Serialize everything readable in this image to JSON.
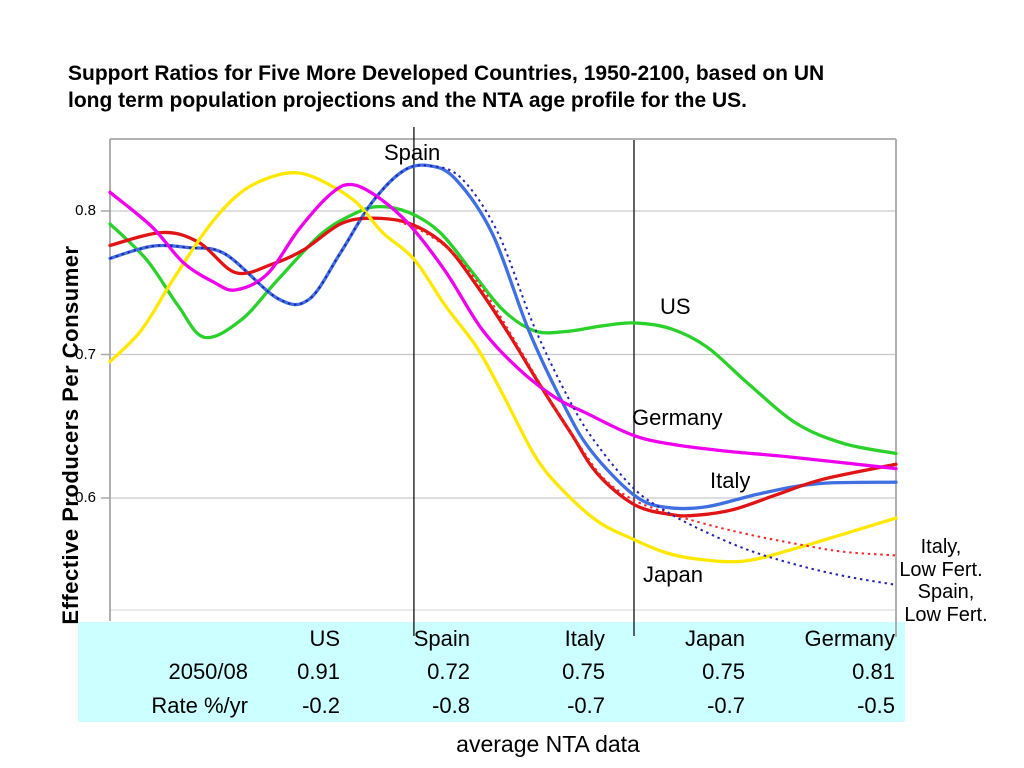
{
  "title": {
    "line1": "Support Ratios for Five More Developed Countries, 1950-2100, based on UN",
    "line2": "long term population projections and the NTA age profile for the US."
  },
  "y_axis": {
    "label": "Effective Producers Per Consumer",
    "ticks": [
      "0.8",
      "0.7",
      "0.6"
    ]
  },
  "annotations": {
    "spain": "Spain",
    "us": "US",
    "germany": "Germany",
    "italy": "Italy",
    "japan": "Japan",
    "italy_low_fert_line1": "Italy,",
    "italy_low_fert_line2": "Low Fert.",
    "spain_low_fert_line1": "Spain,",
    "spain_low_fert_line2": "Low Fert."
  },
  "table": {
    "background": "#ccffff",
    "headers": [
      "",
      "US",
      "Spain",
      "Italy",
      "Japan",
      "Germany"
    ],
    "rows": [
      [
        "2050/08",
        "0.91",
        "0.72",
        "0.75",
        "0.75",
        "0.81"
      ],
      [
        "Rate %/yr",
        "-0.2",
        "-0.8",
        "-0.7",
        "-0.7",
        "-0.5"
      ]
    ]
  },
  "caption": "average NTA data",
  "chart_data": {
    "type": "line",
    "title": "Support Ratios for Five More Developed Countries, 1950-2100, based on UN long term population projections and the NTA age profile for the US.",
    "xlabel": "",
    "ylabel": "Effective Producers Per Consumer",
    "x_range": [
      1950,
      2100
    ],
    "ylim": [
      0.52,
      0.85
    ],
    "yticks": [
      0.8,
      0.7,
      0.6
    ],
    "grid": "horizontal",
    "legend_position": "inline-labels",
    "reference_years": [
      2008,
      2050
    ],
    "colors": {
      "grid": "#c9c9c9",
      "frame": "#a8a8a8",
      "frame_bottom": "#dedede",
      "reference_line": "#111111"
    },
    "series": [
      {
        "name": "US",
        "color": "#2bd12b",
        "style": "solid",
        "points": [
          [
            1950,
            0.791
          ],
          [
            1957,
            0.766
          ],
          [
            1963,
            0.734
          ],
          [
            1968,
            0.712
          ],
          [
            1975,
            0.724
          ],
          [
            1982,
            0.752
          ],
          [
            1990,
            0.783
          ],
          [
            1996,
            0.797
          ],
          [
            2001,
            0.803
          ],
          [
            2007,
            0.799
          ],
          [
            2013,
            0.785
          ],
          [
            2019,
            0.758
          ],
          [
            2025,
            0.731
          ],
          [
            2031,
            0.7165
          ],
          [
            2037,
            0.716
          ],
          [
            2044,
            0.72
          ],
          [
            2050,
            0.722
          ],
          [
            2057,
            0.718
          ],
          [
            2064,
            0.705
          ],
          [
            2072,
            0.679
          ],
          [
            2081,
            0.652
          ],
          [
            2090,
            0.638
          ],
          [
            2100,
            0.631
          ]
        ]
      },
      {
        "name": "Spain",
        "color": "#3f6fe0",
        "style": "solid",
        "points": [
          [
            1950,
            0.767
          ],
          [
            1958,
            0.7755
          ],
          [
            1965,
            0.7745
          ],
          [
            1972,
            0.77
          ],
          [
            1982,
            0.739
          ],
          [
            1988,
            0.7385
          ],
          [
            1994,
            0.771
          ],
          [
            2000,
            0.806
          ],
          [
            2006,
            0.828
          ],
          [
            2011,
            0.8315
          ],
          [
            2016,
            0.822
          ],
          [
            2023,
            0.784
          ],
          [
            2030,
            0.716
          ],
          [
            2037,
            0.662
          ],
          [
            2042,
            0.632
          ],
          [
            2050,
            0.602
          ],
          [
            2056,
            0.5935
          ],
          [
            2064,
            0.594
          ],
          [
            2074,
            0.603
          ],
          [
            2085,
            0.61
          ],
          [
            2100,
            0.611
          ]
        ]
      },
      {
        "name": "Italy",
        "color": "#e01414",
        "style": "solid",
        "points": [
          [
            1950,
            0.776
          ],
          [
            1960,
            0.785
          ],
          [
            1967,
            0.778
          ],
          [
            1974,
            0.757
          ],
          [
            1981,
            0.763
          ],
          [
            1987,
            0.773
          ],
          [
            1994,
            0.791
          ],
          [
            2000,
            0.795
          ],
          [
            2007,
            0.7915
          ],
          [
            2014,
            0.776
          ],
          [
            2020,
            0.748
          ],
          [
            2026,
            0.715
          ],
          [
            2032,
            0.679
          ],
          [
            2038,
            0.645
          ],
          [
            2043,
            0.617
          ],
          [
            2050,
            0.5955
          ],
          [
            2057,
            0.5885
          ],
          [
            2062,
            0.588
          ],
          [
            2069,
            0.592
          ],
          [
            2077,
            0.602
          ],
          [
            2086,
            0.613
          ],
          [
            2100,
            0.6235
          ]
        ]
      },
      {
        "name": "Japan",
        "color": "#ffe800",
        "style": "solid",
        "points": [
          [
            1950,
            0.695
          ],
          [
            1956,
            0.717
          ],
          [
            1962,
            0.752
          ],
          [
            1969,
            0.79
          ],
          [
            1975,
            0.813
          ],
          [
            1981,
            0.824
          ],
          [
            1986,
            0.8265
          ],
          [
            1991,
            0.82
          ],
          [
            1997,
            0.806
          ],
          [
            2002,
            0.785
          ],
          [
            2008,
            0.7665
          ],
          [
            2014,
            0.734
          ],
          [
            2020,
            0.705
          ],
          [
            2025,
            0.672
          ],
          [
            2031,
            0.63
          ],
          [
            2036,
            0.607
          ],
          [
            2043,
            0.584
          ],
          [
            2050,
            0.571
          ],
          [
            2056,
            0.562
          ],
          [
            2062,
            0.5575
          ],
          [
            2071,
            0.556
          ],
          [
            2081,
            0.565
          ],
          [
            2091,
            0.576
          ],
          [
            2100,
            0.586
          ]
        ]
      },
      {
        "name": "Germany",
        "color": "#ee00ee",
        "style": "solid",
        "points": [
          [
            1950,
            0.813
          ],
          [
            1958,
            0.789
          ],
          [
            1964,
            0.764
          ],
          [
            1970,
            0.75
          ],
          [
            1974,
            0.745
          ],
          [
            1980,
            0.756
          ],
          [
            1986,
            0.787
          ],
          [
            1992,
            0.8115
          ],
          [
            1996,
            0.8185
          ],
          [
            2001,
            0.81
          ],
          [
            2007,
            0.791
          ],
          [
            2014,
            0.758
          ],
          [
            2021,
            0.7175
          ],
          [
            2028,
            0.69
          ],
          [
            2035,
            0.67
          ],
          [
            2041,
            0.659
          ],
          [
            2050,
            0.6435
          ],
          [
            2058,
            0.637
          ],
          [
            2068,
            0.6325
          ],
          [
            2080,
            0.6285
          ],
          [
            2100,
            0.6205
          ]
        ]
      },
      {
        "name": "Italy, Low Fert.",
        "color": "#f02828",
        "style": "dotted",
        "points": [
          [
            2005,
            0.793
          ],
          [
            2010,
            0.785
          ],
          [
            2016,
            0.769
          ],
          [
            2022,
            0.741
          ],
          [
            2028,
            0.705
          ],
          [
            2034,
            0.668
          ],
          [
            2039,
            0.64
          ],
          [
            2044,
            0.6145
          ],
          [
            2050,
            0.5985
          ],
          [
            2057,
            0.589
          ],
          [
            2064,
            0.5815
          ],
          [
            2072,
            0.5745
          ],
          [
            2081,
            0.568
          ],
          [
            2090,
            0.5625
          ],
          [
            2100,
            0.56
          ]
        ]
      },
      {
        "name": "Spain, Low Fert.",
        "color": "#2323ad",
        "style": "dotted",
        "points": [
          [
            1950,
            0.767
          ],
          [
            1958,
            0.7755
          ],
          [
            1965,
            0.7745
          ],
          [
            1972,
            0.77
          ],
          [
            1982,
            0.739
          ],
          [
            1988,
            0.7385
          ],
          [
            1994,
            0.771
          ],
          [
            2000,
            0.806
          ],
          [
            2006,
            0.828
          ],
          [
            2011,
            0.8315
          ],
          [
            2017,
            0.823
          ],
          [
            2024,
            0.785
          ],
          [
            2031,
            0.719
          ],
          [
            2038,
            0.666
          ],
          [
            2043,
            0.637
          ],
          [
            2050,
            0.6065
          ],
          [
            2056,
            0.591
          ],
          [
            2063,
            0.5775
          ],
          [
            2072,
            0.5635
          ],
          [
            2082,
            0.5525
          ],
          [
            2091,
            0.545
          ],
          [
            2100,
            0.5395
          ]
        ]
      }
    ]
  }
}
